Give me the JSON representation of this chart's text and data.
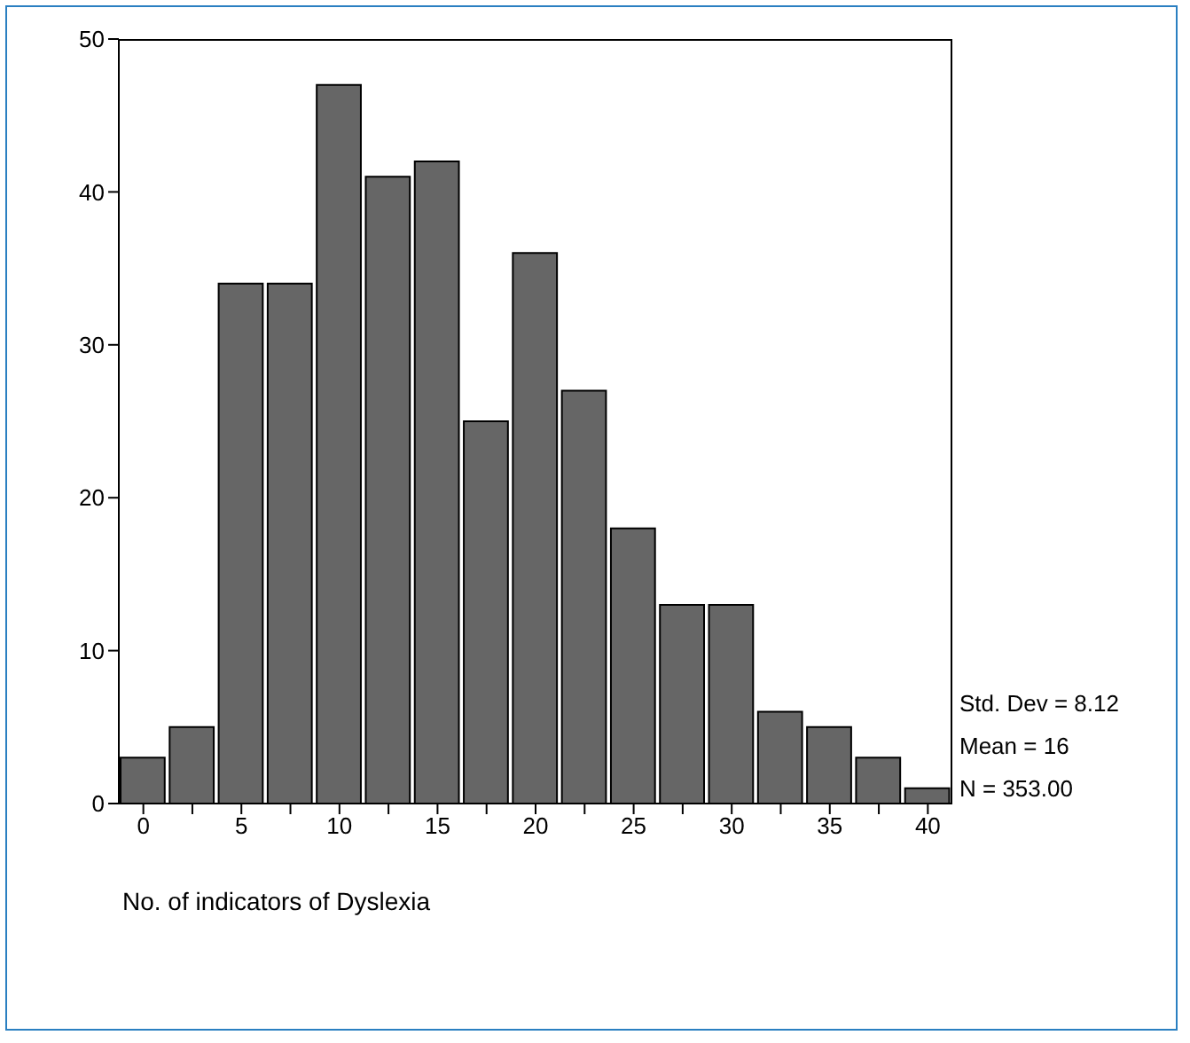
{
  "chart_data": {
    "type": "histogram",
    "xlabel": "No. of indicators of Dyslexia",
    "bins": [
      -1.25,
      1.25,
      3.75,
      6.25,
      8.75,
      11.25,
      13.75,
      16.25,
      18.75,
      21.25,
      23.75,
      26.25,
      28.75,
      31.25,
      33.75,
      36.25,
      38.75,
      41.25
    ],
    "values": [
      3,
      5,
      34,
      34,
      47,
      41,
      42,
      25,
      36,
      27,
      18,
      13,
      13,
      6,
      5,
      3,
      1
    ],
    "color": "#666666",
    "xlim": [
      -1.25,
      41.25
    ],
    "xticks": [
      0,
      {
        "value": 2.5,
        "label": null
      },
      5,
      {
        "value": 7.5,
        "label": null
      },
      10,
      {
        "value": 12.5,
        "label": null
      },
      15,
      {
        "value": 17.5,
        "label": null
      },
      20,
      {
        "value": 22.5,
        "label": null
      },
      25,
      {
        "value": 27.5,
        "label": null
      },
      30,
      {
        "value": 32.5,
        "label": null
      },
      35,
      {
        "value": 37.5,
        "label": null
      },
      40
    ],
    "ylim": [
      0,
      50
    ],
    "yticks": [
      0,
      10,
      20,
      30,
      40,
      50
    ],
    "grid": false,
    "legend": false,
    "annotations": [
      "Std. Dev = 8.12",
      "Mean = 16",
      "N = 353.00"
    ]
  }
}
